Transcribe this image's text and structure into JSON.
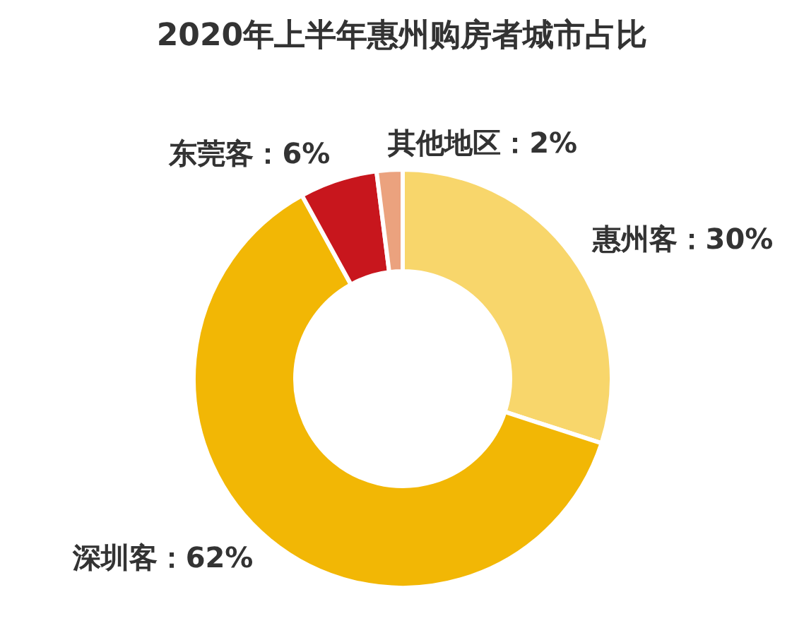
{
  "chart_data": {
    "type": "donut",
    "title": "2020年上半年惠州购房者城市占比",
    "categories": [
      "惠州客",
      "深圳客",
      "东莞客",
      "其他地区"
    ],
    "values": [
      30,
      62,
      6,
      2
    ],
    "value_labels": [
      "30%",
      "62%",
      "6%",
      "2%"
    ],
    "colors": [
      "#f8d66b",
      "#f2b705",
      "#c8161d",
      "#eba27e"
    ]
  }
}
